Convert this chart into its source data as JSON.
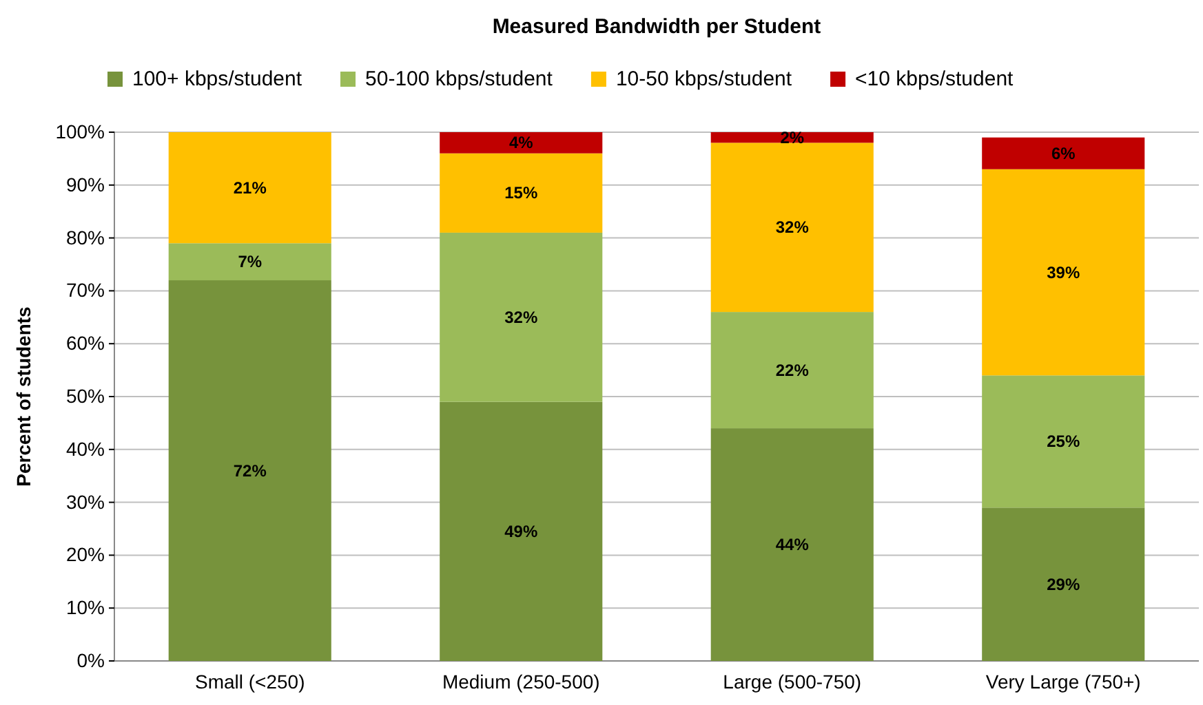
{
  "chart_data": {
    "type": "bar",
    "title": "Measured Bandwidth per Student",
    "ylabel": "Percent of students",
    "categories": [
      "Small (<250)",
      "Medium (250-500)",
      "Large (500-750)",
      "Very Large (750+)"
    ],
    "stacked": true,
    "grid": "y",
    "legend": "top",
    "ylim": [
      0,
      100
    ],
    "yticks": [
      {
        "value": 0,
        "label": "0%"
      },
      {
        "value": 10,
        "label": "10%"
      },
      {
        "value": 20,
        "label": "20%"
      },
      {
        "value": 30,
        "label": "30%"
      },
      {
        "value": 40,
        "label": "40%"
      },
      {
        "value": 50,
        "label": "50%"
      },
      {
        "value": 60,
        "label": "60%"
      },
      {
        "value": 70,
        "label": "70%"
      },
      {
        "value": 80,
        "label": "80%"
      },
      {
        "value": 90,
        "label": "90%"
      },
      {
        "value": 100,
        "label": "100%"
      }
    ],
    "series": [
      {
        "name": "100+ kbps/student",
        "color": "#77933c",
        "values": [
          72,
          49,
          44,
          29
        ],
        "value_labels": [
          "72%",
          "49%",
          "44%",
          "29%"
        ]
      },
      {
        "name": "50-100 kbps/student",
        "color": "#9bbb59",
        "values": [
          7,
          32,
          22,
          25
        ],
        "value_labels": [
          "7%",
          "32%",
          "22%",
          "25%"
        ]
      },
      {
        "name": "10-50 kbps/student",
        "color": "#ffc000",
        "values": [
          21,
          15,
          32,
          39
        ],
        "value_labels": [
          "21%",
          "15%",
          "32%",
          "39%"
        ]
      },
      {
        "name": "<10 kbps/student",
        "color": "#c00000",
        "values": [
          null,
          4,
          2,
          6
        ],
        "value_labels": [
          null,
          "4%",
          "2%",
          "6%"
        ]
      }
    ]
  }
}
